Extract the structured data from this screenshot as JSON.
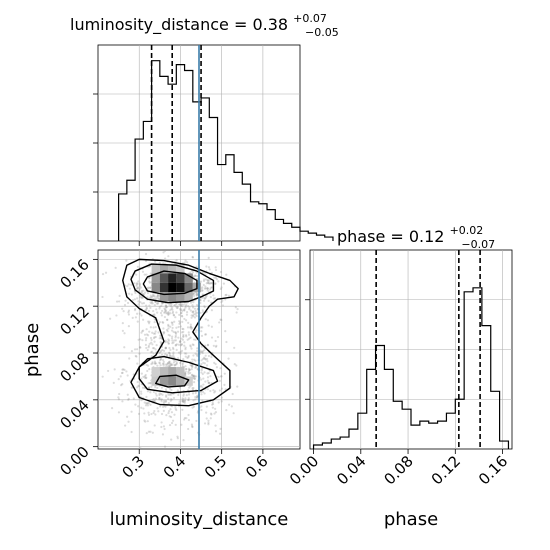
{
  "chart_data": {
    "type": "corner",
    "parameters": [
      "luminosity_distance",
      "phase"
    ],
    "truth": {
      "luminosity_distance": 0.445,
      "phase": null
    },
    "truth_color": "#3b7ca8",
    "grid": true,
    "panels": [
      {
        "id": "luminosity_distance-hist",
        "type": "histogram",
        "title": {
          "main": "luminosity_distance = 0.38",
          "upper": "+0.07",
          "lower": "−0.05"
        },
        "xlim": [
          0.2,
          0.69
        ],
        "ylim": [
          0,
          1.0
        ],
        "quantile_lines": [
          0.33,
          0.38,
          0.45
        ],
        "truth_line": 0.445,
        "bin_width": 0.02,
        "bins_start": 0.25,
        "densities": [
          0.24,
          0.31,
          0.52,
          0.61,
          0.92,
          0.84,
          0.8,
          0.9,
          0.87,
          0.71,
          0.73,
          0.63,
          0.39,
          0.44,
          0.35,
          0.29,
          0.2,
          0.19,
          0.16,
          0.11,
          0.09,
          0.07,
          0.05,
          0.04,
          0.03,
          0.02
        ]
      },
      {
        "id": "phase-hist",
        "type": "histogram",
        "title": {
          "main": "phase = 0.12",
          "upper": "+0.02",
          "lower": "−0.07"
        },
        "xlim": [
          -0.003,
          0.168
        ],
        "ylim": [
          0,
          1.0
        ],
        "quantile_lines": [
          0.053,
          0.123,
          0.141
        ],
        "bin_width": 0.0075,
        "bins_start": 0.0,
        "densities": [
          0.02,
          0.03,
          0.05,
          0.06,
          0.1,
          0.18,
          0.4,
          0.52,
          0.4,
          0.24,
          0.2,
          0.12,
          0.14,
          0.13,
          0.14,
          0.18,
          0.25,
          0.79,
          0.81,
          0.62,
          0.29,
          0.04
        ]
      },
      {
        "id": "2d-density",
        "type": "2d-contour",
        "x_param": "luminosity_distance",
        "y_param": "phase",
        "xlim": [
          0.2,
          0.69
        ],
        "ylim": [
          -0.002,
          0.168
        ],
        "xticks": [
          "0.3",
          "0.4",
          "0.5",
          "0.6"
        ],
        "yticks": [
          "0.00",
          "0.04",
          "0.08",
          "0.12",
          "0.16"
        ],
        "xlabel": "luminosity_distance",
        "ylabel": "phase",
        "truth_line_x": 0.445,
        "modes": [
          {
            "x": 0.37,
            "y": 0.135
          },
          {
            "x": 0.37,
            "y": 0.055
          }
        ],
        "contour_levels": [
          "inner",
          "middle",
          "outer"
        ],
        "scatter_color": "#9a9a9a"
      },
      {
        "id": "phase-marginal-axes",
        "xlabel": "phase",
        "xticks": [
          "0.00",
          "0.04",
          "0.08",
          "0.12",
          "0.16"
        ]
      }
    ]
  }
}
